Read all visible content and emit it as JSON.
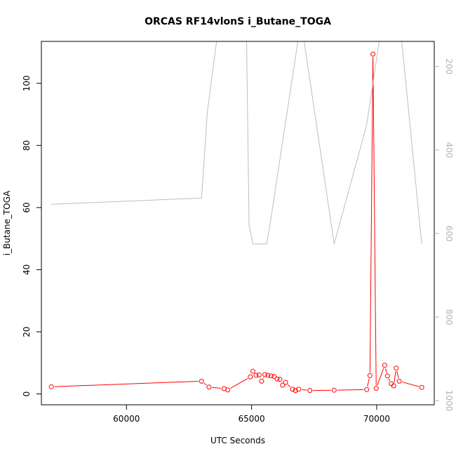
{
  "chart_data": {
    "type": "line",
    "title": "ORCAS RF14vlonS i_Butane_TOGA",
    "xlabel": "UTC Seconds",
    "ylabel": "i_Butane_TOGA",
    "xlim": [
      56600,
      72300
    ],
    "ylim": [
      -3.5,
      113.5
    ],
    "y2lim": [
      1010,
      140
    ],
    "y2_reversed": true,
    "x_ticks": [
      60000,
      65000,
      70000
    ],
    "y_ticks": [
      0,
      20,
      40,
      60,
      80,
      100
    ],
    "y2_ticks": [
      200,
      400,
      600,
      800,
      1000
    ],
    "series": [
      {
        "color": "#ff0000",
        "axis": "left",
        "style": "line+points",
        "x": [
          57000,
          63000,
          63300,
          63900,
          64050,
          64950,
          65050,
          65180,
          65300,
          65400,
          65530,
          65650,
          65780,
          65900,
          66020,
          66130,
          66240,
          66360,
          66640,
          66750,
          66880,
          67330,
          68300,
          69600,
          69730,
          69850,
          69980,
          70320,
          70430,
          70580,
          70680,
          70780,
          70900,
          71800
        ],
        "y": [
          2.3,
          4.1,
          2.2,
          1.7,
          1.3,
          5.5,
          7.3,
          6.0,
          6.1,
          4.1,
          6.2,
          6.0,
          5.8,
          5.6,
          4.8,
          4.7,
          2.8,
          3.7,
          1.5,
          1.1,
          1.5,
          1.1,
          1.2,
          1.4,
          5.9,
          109.4,
          1.8,
          9.2,
          5.8,
          3.3,
          2.6,
          8.3,
          4.1,
          2.1
        ]
      },
      {
        "color": "#bebebe",
        "axis": "right",
        "style": "line",
        "x": [
          57000,
          63000,
          63230,
          63600,
          64800,
          64900,
          65050,
          65600,
          65720,
          66850,
          67100,
          68300,
          69600,
          70100,
          71000,
          71800
        ],
        "y": [
          530,
          515,
          310,
          140,
          140,
          580,
          625,
          625,
          585,
          140,
          140,
          625,
          340,
          140,
          140,
          625
        ]
      }
    ]
  }
}
